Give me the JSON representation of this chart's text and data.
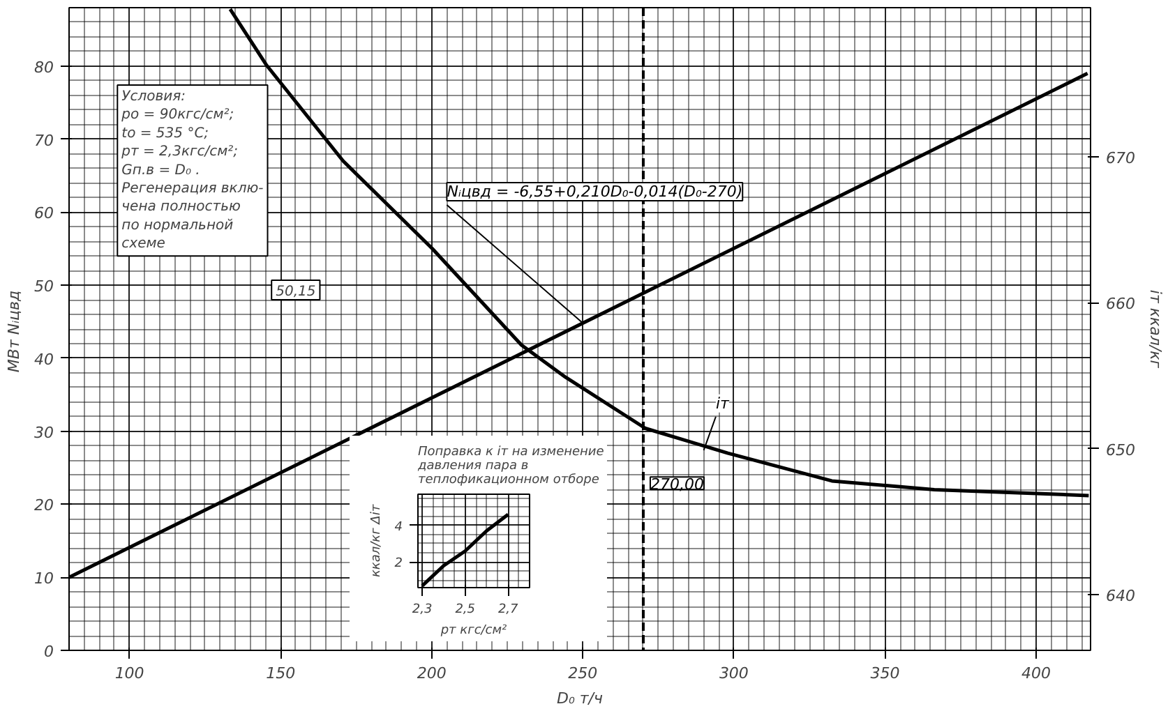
{
  "chart_data": [
    {
      "type": "line",
      "xlabel": "D₀ т/ч",
      "ylabel": "МВт  Nᵢцвд",
      "y2label": "iт ккал/кг",
      "xlim": [
        80,
        418
      ],
      "xticks": [
        100,
        150,
        200,
        250,
        300,
        350,
        400
      ],
      "ylim": [
        0,
        88
      ],
      "yticks": [
        0,
        10,
        20,
        30,
        40,
        50,
        60,
        70,
        80
      ],
      "y2lim": [
        636.2,
        680.2
      ],
      "y2ticks": [
        640,
        650,
        660,
        670
      ],
      "grid": true,
      "series": [
        {
          "color": "#000000",
          "x": [
            80,
            417
          ],
          "values": [
            10,
            79
          ]
        },
        {
          "color": "#000000",
          "axis": "y2",
          "x": [
            133.3,
            145.2,
            170.7,
            200.2,
            229.7,
            244.3,
            270.7,
            298,
            332.4,
            366.3,
            417.4
          ],
          "values": [
            680.1,
            676.3,
            669.7,
            663.7,
            657.1,
            654.9,
            651.4,
            649.7,
            647.8,
            647.2,
            646.8
          ]
        }
      ],
      "ref_lines": [
        {
          "axis": "x",
          "value": 270,
          "label": "270,00",
          "line_style": "dashed"
        }
      ],
      "annotations": [
        "Условия:\npo = 90кгс/см²;\nto = 535 °C;\npт = 2,3кгс/см²;\nGп.в = D₀ .\nРегенерация вклю-\nчена полностью\nпо нормальной\nсхеме",
        {
          "text": "Nᵢцвд = -6,55+0,210D₀-0,014(D₀-270)",
          "x": 250,
          "y": 44.8
        },
        {
          "text": "iт",
          "x": 290,
          "y": 27.4
        },
        "50,15"
      ]
    },
    {
      "type": "line",
      "title": "Поправка к iт на изменение давления пара в теплофикационном отборе",
      "xlabel": "pт кгс/см²",
      "ylabel": "ккал/кг Δiт",
      "xlim": [
        2.28,
        2.8
      ],
      "xticks": [
        {
          "value": 2.3,
          "label": "2,3"
        },
        {
          "value": 2.5,
          "label": "2,5"
        },
        {
          "value": 2.7,
          "label": "2,7"
        }
      ],
      "ylim": [
        0.6,
        5.7
      ],
      "yticks": [
        2,
        4
      ],
      "grid": true,
      "series": [
        {
          "color": "#000000",
          "x": [
            2.3,
            2.4,
            2.5,
            2.6,
            2.7
          ],
          "values": [
            0.7,
            1.8,
            2.6,
            3.7,
            4.6
          ]
        }
      ]
    }
  ]
}
